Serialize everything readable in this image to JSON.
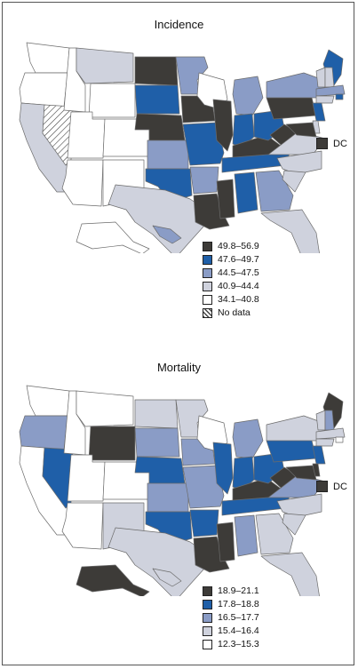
{
  "colors": {
    "c1": "#3d3b38",
    "c2": "#1f5fa8",
    "c3": "#8a9cc6",
    "c4": "#cfd2dd",
    "c5": "#ffffff",
    "nodata": "hatch",
    "stroke": "#6b6b6b"
  },
  "incidence": {
    "title": "Incidence",
    "dc_label": "DC",
    "dc_class": "c1",
    "legend": [
      {
        "label": "49.8–56.9",
        "class": "c1"
      },
      {
        "label": "47.6–49.7",
        "class": "c2"
      },
      {
        "label": "44.5–47.5",
        "class": "c3"
      },
      {
        "label": "40.9–44.4",
        "class": "c4"
      },
      {
        "label": "34.1–40.8",
        "class": "c5"
      },
      {
        "label": "No data",
        "class": "nodata"
      }
    ],
    "states": {
      "WA": "c5",
      "OR": "c5",
      "CA": "c4",
      "NV": "nodata",
      "ID": "c5",
      "MT": "c4",
      "WY": "c5",
      "UT": "c5",
      "CO": "c5",
      "AZ": "c5",
      "NM": "c5",
      "ND": "c1",
      "SD": "c2",
      "NE": "c1",
      "KS": "c3",
      "OK": "c2",
      "TX": "c4",
      "MN": "c3",
      "IA": "c1",
      "MO": "c2",
      "AR": "c3",
      "LA": "c1",
      "WI": "c5",
      "IL": "c1",
      "MS": "c1",
      "MI": "c3",
      "IN": "c2",
      "KY": "c1",
      "TN": "c2",
      "AL": "c2",
      "OH": "c2",
      "GA": "c3",
      "FL": "c4",
      "WV": "c1",
      "PA": "c1",
      "NY": "c3",
      "VA": "c4",
      "NC": "c4",
      "SC": "c4",
      "ME": "c2",
      "VT": "c4",
      "NH": "c4",
      "MA": "c3",
      "RI": "c2",
      "CT": "c4",
      "NJ": "c2",
      "DE": "c4",
      "MD": "c1",
      "AK": "c5",
      "HI": "c3"
    }
  },
  "mortality": {
    "title": "Mortality",
    "dc_label": "DC",
    "dc_class": "c1",
    "legend": [
      {
        "label": "18.9–21.1",
        "class": "c1"
      },
      {
        "label": "17.8–18.8",
        "class": "c2"
      },
      {
        "label": "16.5–17.7",
        "class": "c3"
      },
      {
        "label": "15.4–16.4",
        "class": "c4"
      },
      {
        "label": "12.3–15.3",
        "class": "c5"
      }
    ],
    "states": {
      "WA": "c5",
      "OR": "c3",
      "CA": "c5",
      "NV": "c2",
      "ID": "c5",
      "MT": "c5",
      "WY": "c1",
      "UT": "c5",
      "CO": "c5",
      "AZ": "c5",
      "NM": "c4",
      "ND": "c4",
      "SD": "c3",
      "NE": "c2",
      "KS": "c3",
      "OK": "c2",
      "TX": "c4",
      "MN": "c4",
      "IA": "c3",
      "MO": "c3",
      "AR": "c2",
      "LA": "c1",
      "WI": "c5",
      "IL": "c2",
      "MS": "c1",
      "MI": "c3",
      "IN": "c2",
      "KY": "c1",
      "TN": "c2",
      "AL": "c3",
      "OH": "c2",
      "GA": "c4",
      "FL": "c4",
      "WV": "c1",
      "PA": "c2",
      "NY": "c4",
      "VA": "c3",
      "NC": "c4",
      "SC": "c4",
      "ME": "c1",
      "VT": "c4",
      "NH": "c3",
      "MA": "c4",
      "RI": "c5",
      "CT": "c4",
      "NJ": "c2",
      "DE": "c1",
      "MD": "c1",
      "AK": "c1",
      "HI": "c4"
    }
  }
}
